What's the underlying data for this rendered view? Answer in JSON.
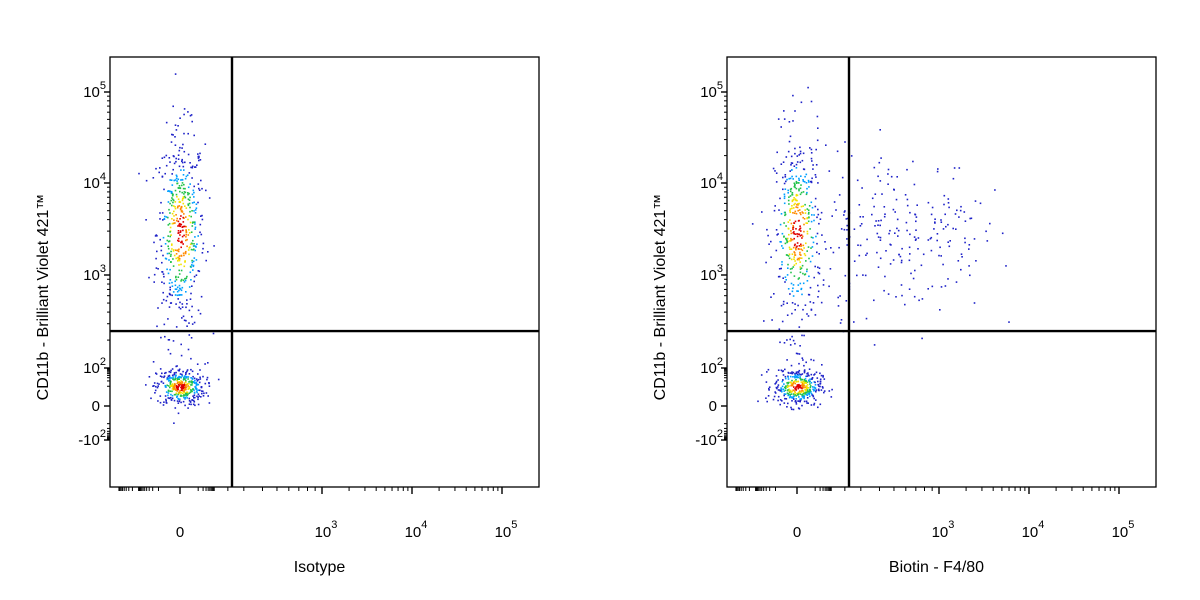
{
  "chart_data": [
    {
      "type": "scatter",
      "xlabel": "Isotype",
      "ylabel": "CD11b - Brilliant Violet 421™",
      "x_scale": "biexponential",
      "y_scale": "biexponential",
      "x_ticks": [
        {
          "value": "0",
          "label": "0",
          "exp": ""
        },
        {
          "value": "1000",
          "label": "10",
          "exp": "3"
        },
        {
          "value": "10000",
          "label": "10",
          "exp": "4"
        },
        {
          "value": "100000",
          "label": "10",
          "exp": "5"
        }
      ],
      "y_ticks": [
        {
          "value": "100000",
          "label": "10",
          "exp": "5"
        },
        {
          "value": "10000",
          "label": "10",
          "exp": "4"
        },
        {
          "value": "1000",
          "label": "10",
          "exp": "3"
        },
        {
          "value": "100",
          "label": "10",
          "exp": "2"
        },
        {
          "value": "0",
          "label": "0",
          "exp": ""
        },
        {
          "value": "-100",
          "label": "-10",
          "exp": "2"
        }
      ],
      "gates": {
        "x": 250,
        "y": 250
      },
      "populations": [
        {
          "x_center": 0,
          "y_center": 3000,
          "n": 520,
          "spread_x": 30,
          "spread_y": 0.55,
          "color": "#1f2fd0"
        },
        {
          "x_center": 0,
          "y_center": 10,
          "n": 380,
          "spread_x": 30,
          "spread_y": 0.5,
          "color": "#1f2fd0"
        }
      ],
      "density_colors": [
        "#1e22c8",
        "#00a0ff",
        "#22c24a",
        "#f2e200",
        "#ff8a00",
        "#e00000"
      ]
    },
    {
      "type": "scatter",
      "xlabel": "Biotin - F4/80",
      "ylabel": "CD11b - Brilliant Violet 421™",
      "x_scale": "biexponential",
      "y_scale": "biexponential",
      "x_ticks": [
        {
          "value": "0",
          "label": "0",
          "exp": ""
        },
        {
          "value": "1000",
          "label": "10",
          "exp": "3"
        },
        {
          "value": "10000",
          "label": "10",
          "exp": "4"
        },
        {
          "value": "100000",
          "label": "10",
          "exp": "5"
        }
      ],
      "y_ticks": [
        {
          "value": "100000",
          "label": "10",
          "exp": "5"
        },
        {
          "value": "10000",
          "label": "10",
          "exp": "4"
        },
        {
          "value": "1000",
          "label": "10",
          "exp": "3"
        },
        {
          "value": "100",
          "label": "10",
          "exp": "2"
        },
        {
          "value": "0",
          "label": "0",
          "exp": ""
        },
        {
          "value": "-100",
          "label": "-10",
          "exp": "2"
        }
      ],
      "gates": {
        "x": 250,
        "y": 250
      },
      "populations": [
        {
          "x_center": 0,
          "y_center": 3000,
          "n": 460,
          "spread_x": 30,
          "spread_y": 0.55,
          "color": "#1f2fd0"
        },
        {
          "x_center": 0,
          "y_center": 10,
          "n": 380,
          "spread_x": 30,
          "spread_y": 0.5,
          "color": "#1f2fd0"
        },
        {
          "x_center": 600,
          "y_center": 3000,
          "n": 230,
          "spread_x": 0.35,
          "spread_y": 0.45,
          "color": "#1f2fd0"
        }
      ],
      "density_colors": [
        "#1e22c8",
        "#00a0ff",
        "#22c24a",
        "#f2e200",
        "#ff8a00",
        "#e00000"
      ]
    }
  ]
}
